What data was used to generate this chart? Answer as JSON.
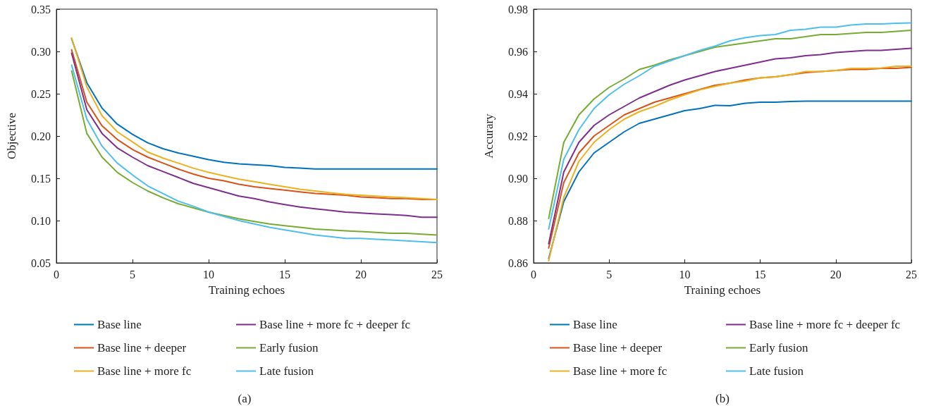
{
  "chart_data": [
    {
      "type": "line",
      "xlabel": "Training echoes",
      "ylabel": "Objective",
      "annotations": [
        "(a)"
      ],
      "marker": "none",
      "legend": "bottom",
      "x": [
        1,
        2,
        3,
        4,
        5,
        6,
        7,
        8,
        9,
        10,
        11,
        12,
        13,
        14,
        15,
        16,
        17,
        18,
        19,
        20,
        21,
        22,
        23,
        24,
        25
      ],
      "xlim": [
        0,
        25
      ],
      "xticks": [
        0,
        5,
        10,
        15,
        20,
        25
      ],
      "ylim": [
        0.05,
        0.35
      ],
      "yticks": [
        0.05,
        {
          "value": 0.1,
          "label": "0.10"
        },
        0.15,
        {
          "value": 0.2,
          "label": "0.20"
        },
        0.25,
        {
          "value": 0.3,
          "label": "0.30"
        },
        0.35
      ],
      "series": [
        {
          "name": "Base line",
          "color": "#0072bd",
          "values": [
            0.315,
            0.263,
            0.233,
            0.214,
            0.202,
            0.192,
            0.185,
            0.18,
            0.176,
            0.172,
            0.169,
            0.167,
            0.166,
            0.165,
            0.163,
            0.162,
            0.161,
            0.161,
            0.161,
            0.161,
            0.161,
            0.161,
            0.161,
            0.161,
            0.161
          ]
        },
        {
          "name": "Base line + deeper",
          "color": "#d95319",
          "values": [
            0.302,
            0.24,
            0.212,
            0.196,
            0.184,
            0.175,
            0.168,
            0.161,
            0.155,
            0.15,
            0.147,
            0.143,
            0.14,
            0.138,
            0.136,
            0.134,
            0.132,
            0.131,
            0.13,
            0.128,
            0.127,
            0.126,
            0.126,
            0.125,
            0.125
          ]
        },
        {
          "name": "Base line + more fc",
          "color": "#edb120",
          "values": [
            0.316,
            0.258,
            0.224,
            0.205,
            0.193,
            0.181,
            0.174,
            0.168,
            0.162,
            0.157,
            0.153,
            0.149,
            0.146,
            0.143,
            0.14,
            0.137,
            0.135,
            0.133,
            0.131,
            0.13,
            0.129,
            0.128,
            0.127,
            0.126,
            0.125
          ]
        },
        {
          "name": "Base line + more fc + deeper fc",
          "color": "#7e2f8e",
          "values": [
            0.298,
            0.231,
            0.203,
            0.186,
            0.175,
            0.165,
            0.158,
            0.151,
            0.144,
            0.139,
            0.134,
            0.129,
            0.126,
            0.122,
            0.119,
            0.116,
            0.114,
            0.112,
            0.11,
            0.109,
            0.108,
            0.107,
            0.106,
            0.104,
            0.104
          ]
        },
        {
          "name": "Early fusion",
          "color": "#77ac30",
          "values": [
            0.277,
            0.203,
            0.175,
            0.157,
            0.145,
            0.135,
            0.127,
            0.12,
            0.115,
            0.11,
            0.106,
            0.102,
            0.099,
            0.096,
            0.094,
            0.092,
            0.09,
            0.089,
            0.088,
            0.087,
            0.086,
            0.085,
            0.085,
            0.084,
            0.083
          ]
        },
        {
          "name": "Late fusion",
          "color": "#4dbeee",
          "values": [
            0.284,
            0.22,
            0.188,
            0.168,
            0.154,
            0.141,
            0.132,
            0.123,
            0.117,
            0.11,
            0.105,
            0.1,
            0.096,
            0.092,
            0.089,
            0.086,
            0.083,
            0.081,
            0.079,
            0.079,
            0.078,
            0.077,
            0.076,
            0.075,
            0.074
          ]
        }
      ]
    },
    {
      "type": "line",
      "xlabel": "Training echoes",
      "ylabel": "Accurary",
      "annotations": [
        "(b)"
      ],
      "marker": "none",
      "legend": "bottom",
      "x": [
        1,
        2,
        3,
        4,
        5,
        6,
        7,
        8,
        9,
        10,
        11,
        12,
        13,
        14,
        15,
        16,
        17,
        18,
        19,
        20,
        21,
        22,
        23,
        24,
        25
      ],
      "xlim": [
        0,
        25
      ],
      "xticks": [
        0,
        5,
        10,
        15,
        20,
        25
      ],
      "ylim": [
        0.86,
        0.98
      ],
      "yticks": [
        0.86,
        0.88,
        {
          "value": 0.9,
          "label": "0.90"
        },
        0.92,
        0.94,
        0.96,
        0.98
      ],
      "series": [
        {
          "name": "Base line",
          "color": "#0072bd",
          "values": [
            0.862,
            0.889,
            0.903,
            0.912,
            0.917,
            0.922,
            0.926,
            0.928,
            0.93,
            0.932,
            0.933,
            0.9345,
            0.9343,
            0.9355,
            0.936,
            0.936,
            0.9363,
            0.9365,
            0.9365,
            0.9365,
            0.9365,
            0.9365,
            0.9365,
            0.9365,
            0.9365
          ]
        },
        {
          "name": "Base line + deeper",
          "color": "#d95319",
          "values": [
            0.867,
            0.898,
            0.912,
            0.92,
            0.925,
            0.93,
            0.933,
            0.936,
            0.938,
            0.94,
            0.942,
            0.944,
            0.945,
            0.9465,
            0.9475,
            0.948,
            0.949,
            0.95,
            0.9505,
            0.951,
            0.9515,
            0.9515,
            0.952,
            0.952,
            0.9525
          ]
        },
        {
          "name": "Base line + more fc",
          "color": "#edb120",
          "values": [
            0.861,
            0.891,
            0.908,
            0.917,
            0.923,
            0.928,
            0.9315,
            0.934,
            0.937,
            0.9395,
            0.9418,
            0.9435,
            0.945,
            0.946,
            0.9475,
            0.948,
            0.949,
            0.9505,
            0.9505,
            0.951,
            0.952,
            0.952,
            0.9522,
            0.953,
            0.953
          ]
        },
        {
          "name": "Base line + more fc + deeper fc",
          "color": "#7e2f8e",
          "values": [
            0.869,
            0.903,
            0.917,
            0.925,
            0.93,
            0.934,
            0.938,
            0.941,
            0.944,
            0.9465,
            0.9485,
            0.9505,
            0.952,
            0.9535,
            0.955,
            0.9565,
            0.957,
            0.958,
            0.9585,
            0.9595,
            0.96,
            0.9605,
            0.9605,
            0.961,
            0.9615
          ]
        },
        {
          "name": "Early fusion",
          "color": "#77ac30",
          "values": [
            0.881,
            0.917,
            0.93,
            0.9375,
            0.943,
            0.947,
            0.9515,
            0.9535,
            0.956,
            0.958,
            0.96,
            0.962,
            0.963,
            0.964,
            0.965,
            0.966,
            0.966,
            0.967,
            0.968,
            0.968,
            0.9685,
            0.969,
            0.969,
            0.9695,
            0.97
          ]
        },
        {
          "name": "Late fusion",
          "color": "#4dbeee",
          "values": [
            0.876,
            0.909,
            0.923,
            0.933,
            0.9395,
            0.9445,
            0.9485,
            0.953,
            0.9555,
            0.958,
            0.9605,
            0.9625,
            0.965,
            0.9665,
            0.9675,
            0.968,
            0.97,
            0.9705,
            0.9715,
            0.9715,
            0.9725,
            0.973,
            0.973,
            0.9733,
            0.9735
          ]
        }
      ]
    }
  ]
}
